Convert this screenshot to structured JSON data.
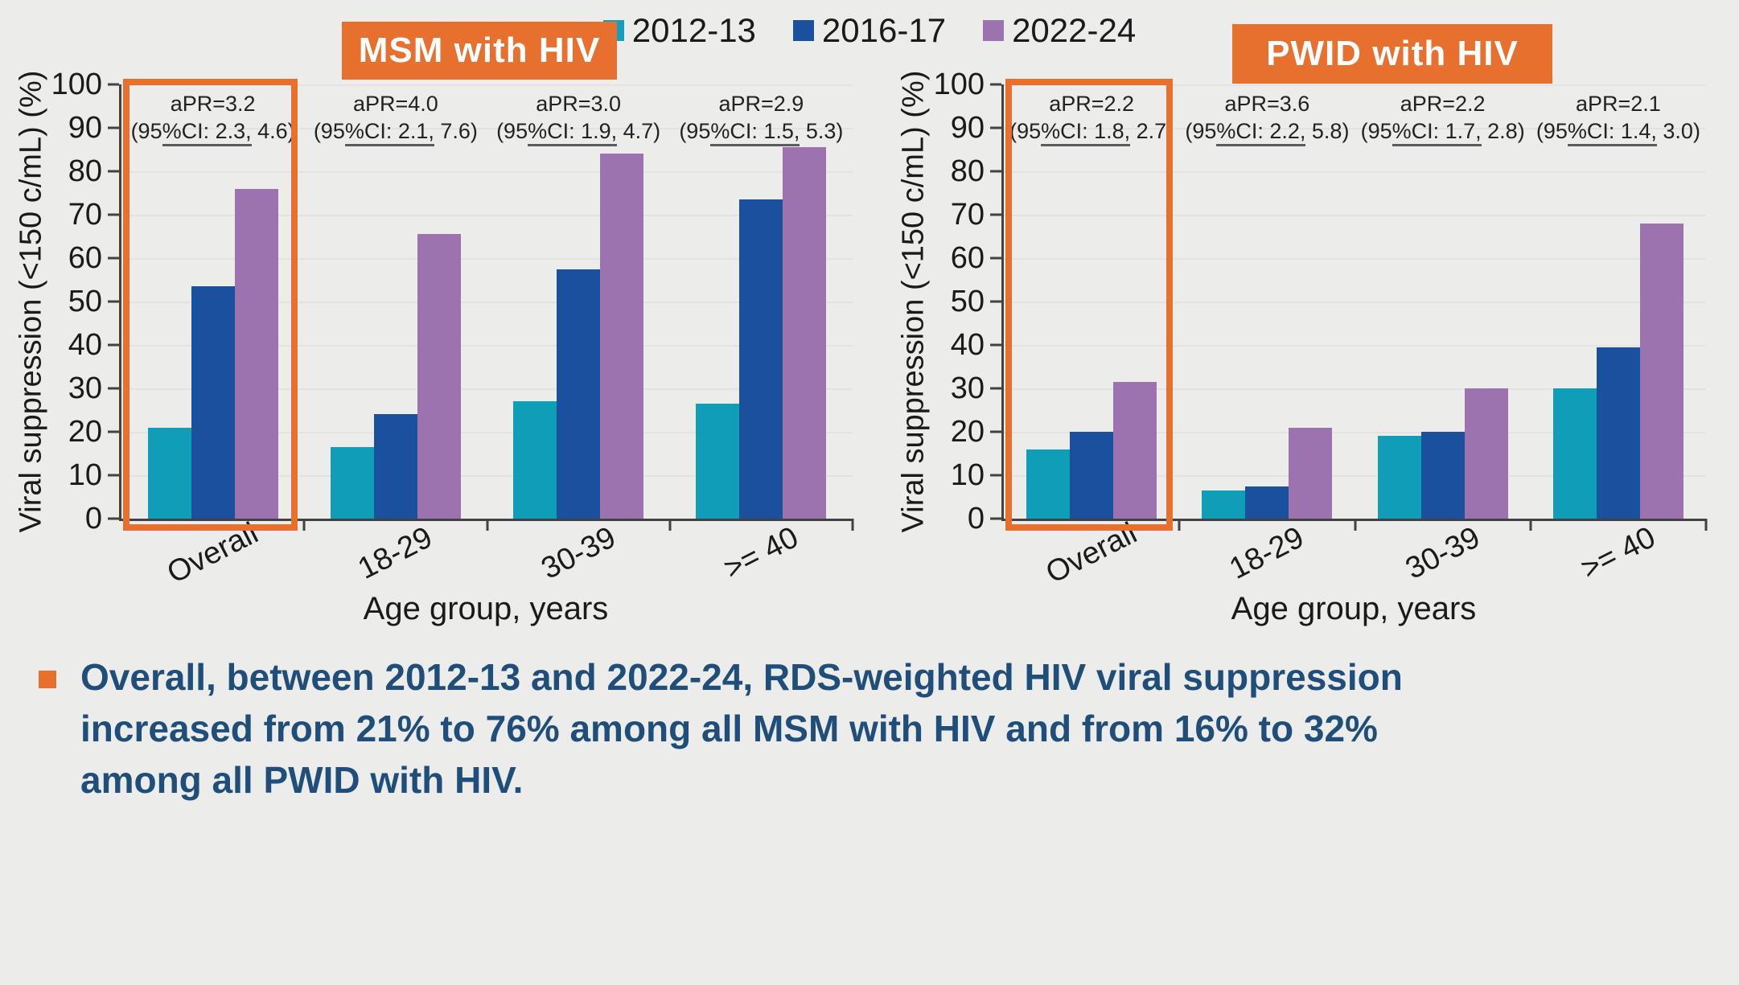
{
  "slide": {
    "background": "#ECECEA",
    "legend": {
      "items": [
        {
          "label": "2012-13",
          "color": "#14A0BC"
        },
        {
          "label": "2016-17",
          "color": "#1A509E"
        },
        {
          "label": "2022-24",
          "color": "#9C73AE"
        }
      ]
    },
    "bullet": {
      "marker_color": "#E8702E",
      "text_color": "#1E4E79",
      "lines": [
        "Overall, between 2012-13 and 2022-24, RDS-weighted HIV viral suppression",
        "increased from 21% to 76% among all MSM with HIV and from 16% to 32%",
        "among all PWID with HIV."
      ]
    }
  },
  "chart_data": [
    {
      "type": "bar",
      "title": "MSM with HIV",
      "title_bg": "#E8702E",
      "categories": [
        "Overall",
        "18-29",
        "30-39",
        ">= 40"
      ],
      "series": [
        {
          "name": "2012-13",
          "color": "#0F9DB8",
          "values": [
            21,
            16.5,
            27,
            26.5
          ]
        },
        {
          "name": "2016-17",
          "color": "#1A509E",
          "values": [
            53.5,
            24,
            57.5,
            73.5
          ]
        },
        {
          "name": "2022-24",
          "color": "#9C73AE",
          "values": [
            76,
            65.5,
            84,
            85.5
          ]
        }
      ],
      "annotations": [
        {
          "apr": "aPR=3.2",
          "ci_pre": "(95",
          "ci_underlined": "%CI: 2.3,",
          "ci_post": " 4.6)"
        },
        {
          "apr": "aPR=4.0",
          "ci_pre": "(95",
          "ci_underlined": "%CI: 2.1,",
          "ci_post": " 7.6)"
        },
        {
          "apr": "aPR=3.0",
          "ci_pre": "(95",
          "ci_underlined": "%CI: 1.9,",
          "ci_post": " 4.7)"
        },
        {
          "apr": "aPR=2.9",
          "ci_pre": "(95",
          "ci_underlined": "%CI: 1.5,",
          "ci_post": " 5.3)"
        }
      ],
      "xlabel": "Age group, years",
      "ylabel": "Viral suppression (<150 c/mL) (%)",
      "ylim": [
        0,
        100
      ],
      "ytick_step": 10,
      "grid": true,
      "legend_position": "top-center",
      "highlight": {
        "category": "Overall",
        "color": "#E8702E"
      }
    },
    {
      "type": "bar",
      "title": "PWID with HIV",
      "title_bg": "#E8702E",
      "categories": [
        "Overall",
        "18-29",
        "30-39",
        ">= 40"
      ],
      "series": [
        {
          "name": "2012-13",
          "color": "#0F9DB8",
          "values": [
            16,
            6.5,
            19,
            30
          ]
        },
        {
          "name": "2016-17",
          "color": "#1A509E",
          "values": [
            20,
            7.5,
            20,
            39.5
          ]
        },
        {
          "name": "2022-24",
          "color": "#9C73AE",
          "values": [
            31.5,
            21,
            30,
            68
          ]
        }
      ],
      "annotations": [
        {
          "apr": "aPR=2.2",
          "ci_pre": "(95",
          "ci_underlined": "%CI: 1.8,",
          "ci_post": " 2.7)"
        },
        {
          "apr": "aPR=3.6",
          "ci_pre": "(95",
          "ci_underlined": "%CI: 2.2,",
          "ci_post": " 5.8)"
        },
        {
          "apr": "aPR=2.2",
          "ci_pre": "(95",
          "ci_underlined": "%CI: 1.7,",
          "ci_post": " 2.8)"
        },
        {
          "apr": "aPR=2.1",
          "ci_pre": "(95",
          "ci_underlined": "%CI: 1.4,",
          "ci_post": " 3.0)"
        }
      ],
      "xlabel": "Age group, years",
      "ylabel": "Viral suppression (<150 c/mL) (%)",
      "ylim": [
        0,
        100
      ],
      "ytick_step": 10,
      "grid": true,
      "legend_position": "top-center",
      "highlight": {
        "category": "Overall",
        "color": "#E8702E"
      }
    }
  ]
}
